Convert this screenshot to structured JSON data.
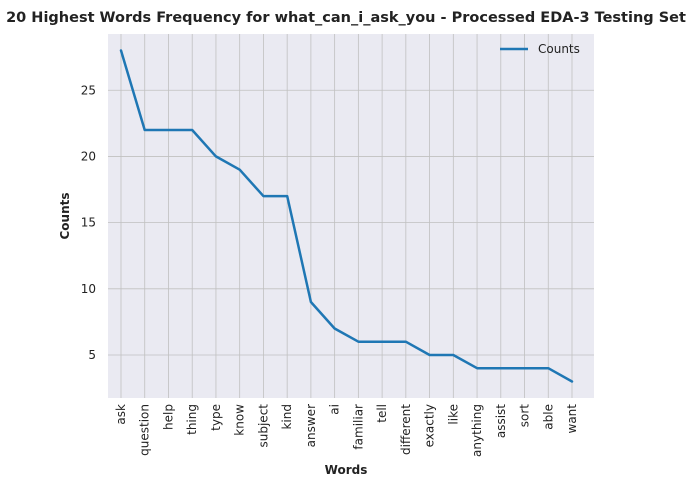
{
  "chart_data": {
    "type": "line",
    "title": "20 Highest Words Frequency for what_can_i_ask_you - Processed EDA-3 Testing Set",
    "xlabel": "Words",
    "ylabel": "Counts",
    "categories": [
      "ask",
      "question",
      "help",
      "thing",
      "type",
      "know",
      "subject",
      "kind",
      "answer",
      "ai",
      "familiar",
      "tell",
      "different",
      "exactly",
      "like",
      "anything",
      "assist",
      "sort",
      "able",
      "want"
    ],
    "series": [
      {
        "name": "Counts",
        "values": [
          28,
          22,
          22,
          22,
          20,
          19,
          17,
          17,
          9,
          7,
          6,
          6,
          6,
          5,
          5,
          4,
          4,
          4,
          4,
          3
        ],
        "color": "#1f77b4"
      }
    ],
    "yticks": [
      5,
      10,
      15,
      20,
      25
    ],
    "ylim": [
      1.75,
      29.25
    ],
    "grid": true,
    "legend_position": "top-right",
    "background": "#eaeaf2",
    "grid_color": "#c0c0c0"
  }
}
